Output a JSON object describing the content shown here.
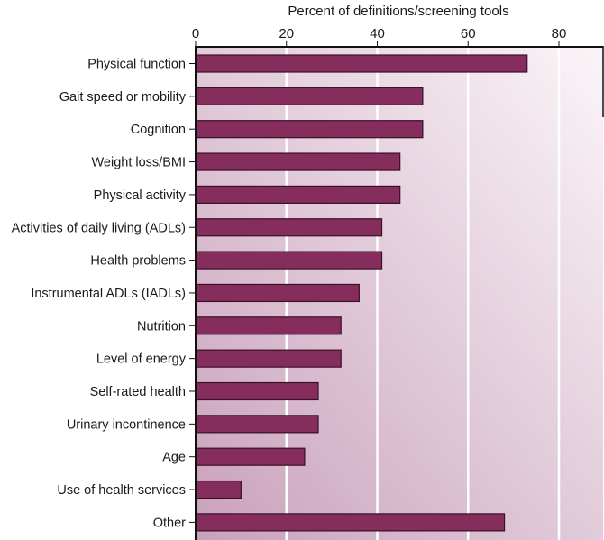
{
  "chart_data": {
    "type": "bar",
    "orientation": "horizontal",
    "title": "",
    "xlabel": "Percent of definitions/screening tools",
    "ylabel": "",
    "xlim": [
      0,
      90
    ],
    "xticks": [
      0,
      20,
      40,
      60,
      80
    ],
    "xtick_labels": [
      "0",
      "20",
      "40",
      "60",
      "80"
    ],
    "x_axis_position": "top",
    "grid": true,
    "categories": [
      "Physical function",
      "Gait speed or mobility",
      "Cognition",
      "Weight loss/BMI",
      "Physical activity",
      "Activities of daily living (ADLs)",
      "Health problems",
      "Instrumental ADLs (IADLs)",
      "Nutrition",
      "Level of energy",
      "Self-rated health",
      "Urinary incontinence",
      "Age",
      "Use of health services",
      "Other"
    ],
    "values": [
      73,
      50,
      50,
      45,
      45,
      41,
      41,
      36,
      32,
      32,
      27,
      27,
      24,
      10,
      68
    ],
    "colors": {
      "bar": "#852d5c",
      "bar_edge": "#3a1028",
      "background_dark": "#c9a1bb",
      "background_light": "#faf5f8",
      "grid": "#ffffff",
      "axis": "#111111"
    }
  }
}
